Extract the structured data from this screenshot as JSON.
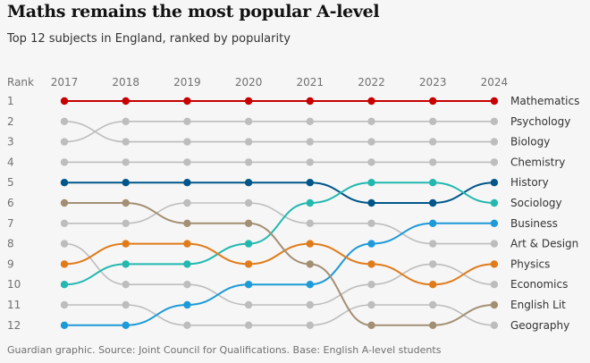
{
  "title": "Maths remains the most popular A-level",
  "subtitle": "Top 12 subjects in England, ranked by popularity",
  "source": "Guardian graphic. Source: Joint Council for Qualifications. Base: English A-level students",
  "chart_data": {
    "type": "line",
    "kind": "bump",
    "title": "Maths remains the most popular A-level",
    "ylabel": "Rank",
    "x": [
      "2017",
      "2018",
      "2019",
      "2020",
      "2021",
      "2022",
      "2023",
      "2024"
    ],
    "ranks": [
      "1",
      "2",
      "3",
      "4",
      "5",
      "6",
      "7",
      "8",
      "9",
      "10",
      "11",
      "12"
    ],
    "ylim": [
      1,
      12
    ],
    "series": [
      {
        "name": "Mathematics",
        "color": "#c70000",
        "values": [
          1,
          1,
          1,
          1,
          1,
          1,
          1,
          1
        ]
      },
      {
        "name": "Psychology",
        "color": "#bdbdbd",
        "values": [
          3,
          2,
          2,
          2,
          2,
          2,
          2,
          2
        ]
      },
      {
        "name": "Biology",
        "color": "#bdbdbd",
        "values": [
          2,
          3,
          3,
          3,
          3,
          3,
          3,
          3
        ]
      },
      {
        "name": "Chemistry",
        "color": "#bdbdbd",
        "values": [
          4,
          4,
          4,
          4,
          4,
          4,
          4,
          4
        ]
      },
      {
        "name": "History",
        "color": "#005689",
        "values": [
          5,
          5,
          5,
          5,
          5,
          6,
          6,
          5
        ]
      },
      {
        "name": "Sociology",
        "color": "#22b8b0",
        "values": [
          10,
          9,
          9,
          8,
          6,
          5,
          5,
          6
        ]
      },
      {
        "name": "Business",
        "color": "#1d9ad8",
        "values": [
          12,
          12,
          11,
          10,
          10,
          8,
          7,
          7
        ]
      },
      {
        "name": "Art & Design",
        "color": "#bdbdbd",
        "values": [
          7,
          7,
          6,
          6,
          7,
          7,
          8,
          8
        ]
      },
      {
        "name": "Physics",
        "color": "#e07b1a",
        "values": [
          9,
          8,
          8,
          9,
          8,
          9,
          10,
          9
        ]
      },
      {
        "name": "Economics",
        "color": "#bdbdbd",
        "values": [
          8,
          10,
          10,
          11,
          11,
          10,
          9,
          10
        ]
      },
      {
        "name": "English Lit",
        "color": "#a38f73",
        "values": [
          6,
          6,
          7,
          7,
          9,
          12,
          12,
          11
        ]
      },
      {
        "name": "Geography",
        "color": "#bdbdbd",
        "values": [
          11,
          11,
          12,
          12,
          12,
          11,
          11,
          12
        ]
      }
    ]
  }
}
